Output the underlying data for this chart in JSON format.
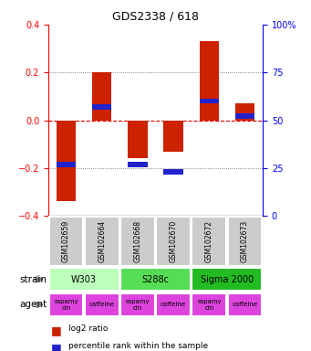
{
  "title": "GDS2338 / 618",
  "samples": [
    "GSM102659",
    "GSM102664",
    "GSM102668",
    "GSM102670",
    "GSM102672",
    "GSM102673"
  ],
  "log2_ratio": [
    -0.34,
    0.2,
    -0.16,
    -0.13,
    0.33,
    0.07
  ],
  "percentile": [
    27,
    57,
    27,
    23,
    60,
    52
  ],
  "ylim_left": [
    -0.4,
    0.4
  ],
  "ylim_right": [
    0,
    100
  ],
  "yticks_left": [
    -0.4,
    -0.2,
    0.0,
    0.2,
    0.4
  ],
  "yticks_right": [
    0,
    25,
    50,
    75,
    100
  ],
  "bar_color_red": "#cc2200",
  "bar_color_blue": "#2222cc",
  "strains": [
    {
      "label": "W303",
      "start": 0,
      "end": 2,
      "color": "#bbffbb"
    },
    {
      "label": "S288c",
      "start": 2,
      "end": 4,
      "color": "#55dd55"
    },
    {
      "label": "Sigma 2000",
      "start": 4,
      "end": 6,
      "color": "#22bb22"
    }
  ],
  "agents": [
    "rapamycin",
    "caffeine",
    "rapamycin",
    "caffeine",
    "rapamycin",
    "caffeine"
  ],
  "agent_color": "#dd44dd",
  "gsm_color": "#cccccc",
  "hline_color": "#dd0000",
  "dotted_color": "#666666",
  "legend_red_label": "log2 ratio",
  "legend_blue_label": "percentile rank within the sample",
  "strain_label": "strain",
  "agent_label": "agent"
}
